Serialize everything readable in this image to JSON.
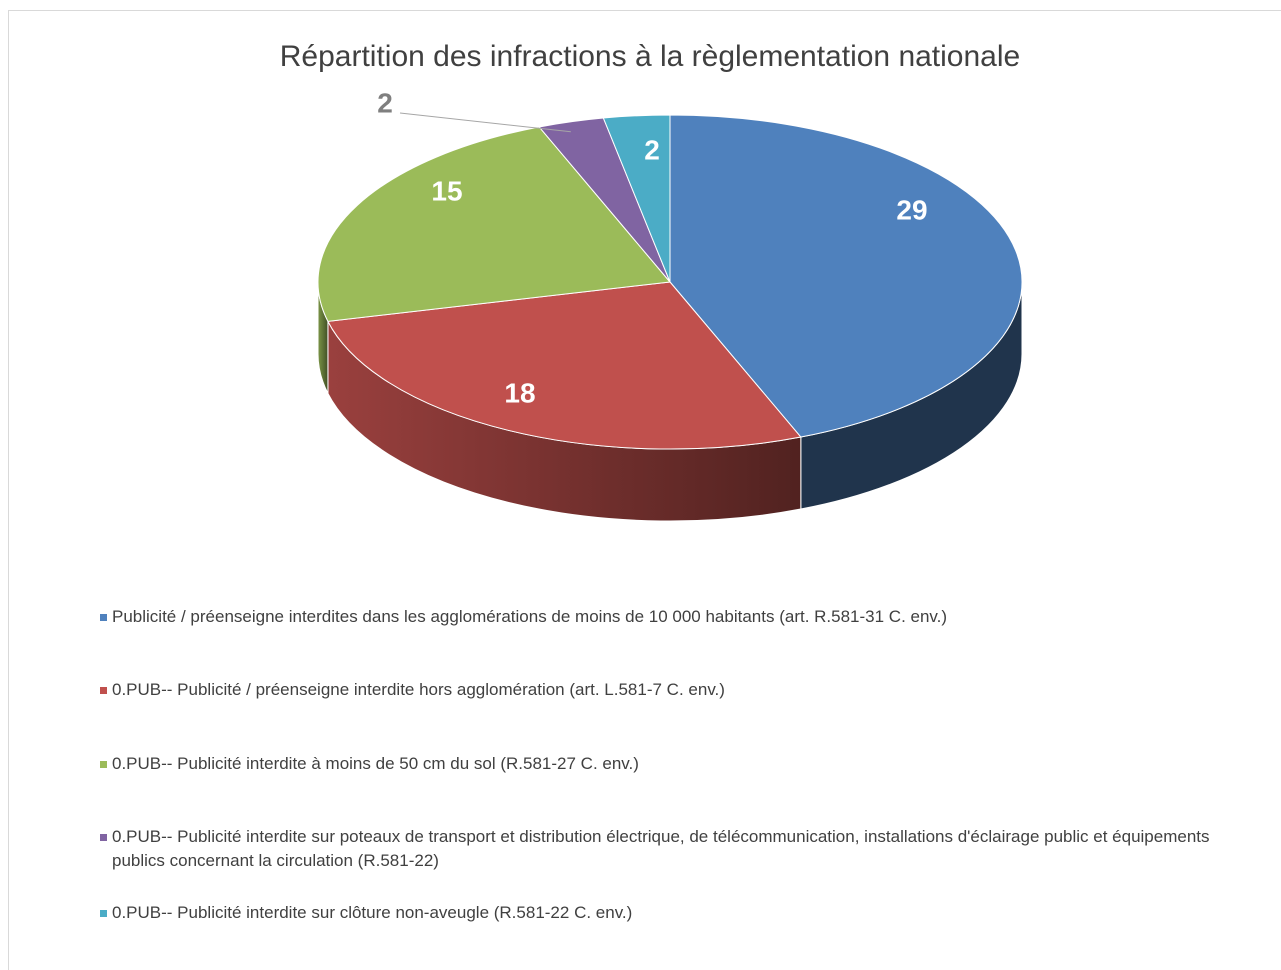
{
  "chart_data": {
    "type": "pie3d",
    "title": "Répartition des infractions à la règlementation nationale",
    "categories": [
      "Publicité / préenseigne interdites dans les agglomérations de moins de 10 000 habitants (art. R.581-31 C. env.)",
      "0.PUB-- Publicité / préenseigne interdite hors agglomération (art. L.581-7 C. env.)",
      "0.PUB-- Publicité interdite à moins de 50 cm du sol (R.581-27 C. env.)",
      "0.PUB-- Publicité interdite sur poteaux de transport et distribution électrique, de télécommunication, installations d'éclairage public et équipements publics  concernant la circulation (R.581-22)",
      "0.PUB-- Publicité interdite sur clôture non-aveugle (R.581-22 C. env.)"
    ],
    "values": [
      29,
      18,
      15,
      2,
      2
    ],
    "colors": [
      "#4f81bd",
      "#c0504d",
      "#9bbb59",
      "#8064a2",
      "#4bacc6"
    ],
    "legend": "bottom"
  }
}
